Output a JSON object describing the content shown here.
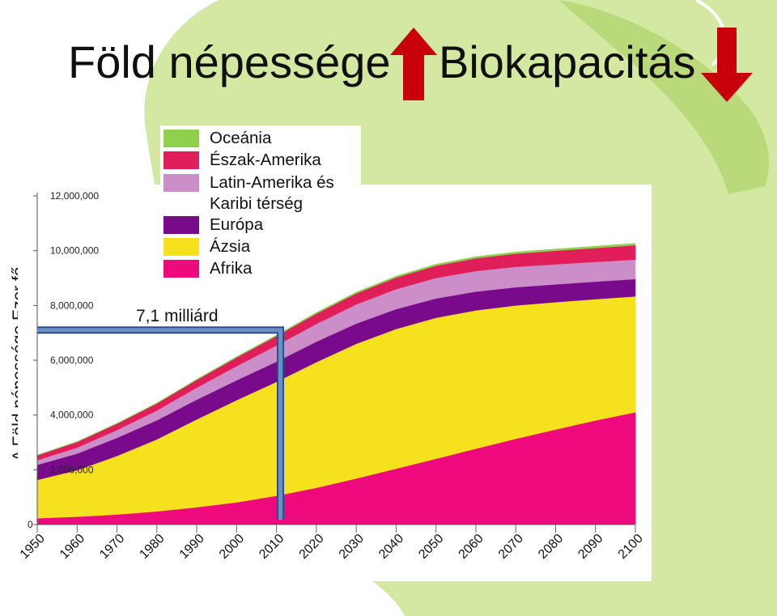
{
  "slide": {
    "title_left": "Föld népessége",
    "title_right": "Biokapacitás",
    "ylabel": "A Föld népessége Ezer fő",
    "callout": "7,1 milliárd",
    "colors": {
      "arrow": "#c8000a",
      "leaf": "#d3e8a0",
      "leaf_dark": "#bad97a"
    }
  },
  "legend": [
    {
      "label": "Oceánia",
      "color": "#8fd14f"
    },
    {
      "label": "Észak-Amerika",
      "color": "#e01e5a"
    },
    {
      "label": "Latin-Amerika és",
      "label2": "Karibi térség",
      "color": "#cc8ec8"
    },
    {
      "label": "Európa",
      "color": "#7a0a8c"
    },
    {
      "label": "Ázsia",
      "color": "#f5e11e"
    },
    {
      "label": "Afrika",
      "color": "#ee0a7c"
    }
  ],
  "chart_data": {
    "type": "area",
    "stacked": true,
    "x": [
      1950,
      1960,
      1970,
      1980,
      1990,
      2000,
      2010,
      2020,
      2030,
      2040,
      2050,
      2060,
      2070,
      2080,
      2090,
      2100
    ],
    "xlabels": [
      "1950",
      "1960",
      "1970",
      "1980",
      "1990",
      "2000",
      "2010",
      "2020",
      "2030",
      "2040",
      "2050",
      "2060",
      "2070",
      "2080",
      "2090",
      "2100"
    ],
    "ylim": [
      0,
      12000000
    ],
    "yticks": [
      0,
      2000000,
      4000000,
      6000000,
      8000000,
      10000000,
      12000000
    ],
    "ytick_labels": [
      "0",
      "2,000,000",
      "4,000,000",
      "6,000,000",
      "8,000,000",
      "10,000,000",
      "12,000,000"
    ],
    "grid": false,
    "series": [
      {
        "name": "Afrika",
        "color": "#ee0a7c",
        "values": [
          230000,
          285000,
          365000,
          480000,
          630000,
          810000,
          1050000,
          1340000,
          1680000,
          2040000,
          2400000,
          2770000,
          3130000,
          3470000,
          3800000,
          4100000
        ]
      },
      {
        "name": "Ázsia",
        "color": "#f5e11e",
        "values": [
          1400000,
          1700000,
          2140000,
          2630000,
          3210000,
          3730000,
          4160000,
          4590000,
          4920000,
          5100000,
          5150000,
          5050000,
          4870000,
          4650000,
          4430000,
          4230000
        ]
      },
      {
        "name": "Európa",
        "color": "#7a0a8c",
        "values": [
          550000,
          605000,
          660000,
          695000,
          720000,
          725000,
          738000,
          745000,
          738000,
          725000,
          705000,
          685000,
          665000,
          650000,
          640000,
          632000
        ]
      },
      {
        "name": "Latin-Amerika és Karibi térség",
        "color": "#cc8ec8",
        "values": [
          170000,
          220000,
          285000,
          360000,
          440000,
          520000,
          590000,
          650000,
          700000,
          730000,
          750000,
          752000,
          745000,
          732000,
          720000,
          712000
        ]
      },
      {
        "name": "Észak-Amerika",
        "color": "#e01e5a",
        "values": [
          175000,
          205000,
          230000,
          255000,
          280000,
          315000,
          345000,
          375000,
          400000,
          425000,
          445000,
          465000,
          480000,
          495000,
          508000,
          525000
        ]
      },
      {
        "name": "Oceánia",
        "color": "#8fd14f",
        "values": [
          13000,
          16000,
          20000,
          23000,
          27000,
          31000,
          37000,
          43000,
          48000,
          53000,
          57000,
          60000,
          63000,
          65000,
          67000,
          70000
        ]
      }
    ],
    "marker": {
      "x": 2011,
      "value": 7100000
    }
  }
}
